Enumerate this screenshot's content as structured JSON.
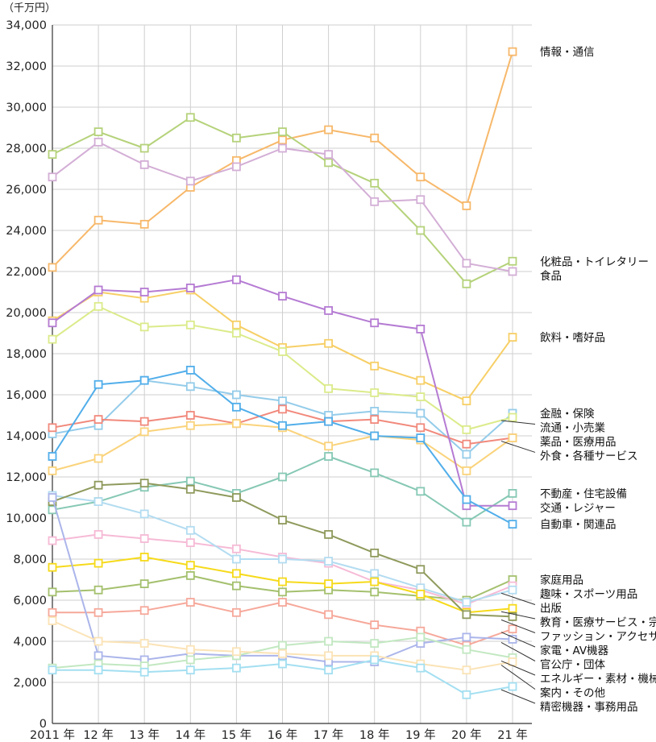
{
  "chart_data": {
    "type": "line",
    "y_unit": "（千万円）",
    "ylim": [
      0,
      34000
    ],
    "y_ticks": [
      0,
      2000,
      4000,
      6000,
      8000,
      10000,
      12000,
      14000,
      16000,
      18000,
      20000,
      22000,
      24000,
      26000,
      28000,
      30000,
      32000,
      34000
    ],
    "y_tick_labels": [
      "0",
      "2,000",
      "4,000",
      "6,000",
      "8,000",
      "10,000",
      "12,000",
      "14,000",
      "16,000",
      "18,000",
      "20,000",
      "22,000",
      "24,000",
      "26,000",
      "28,000",
      "30,000",
      "32,000",
      "34,000"
    ],
    "x_ticks": [
      "2011 年",
      "12 年",
      "13 年",
      "14 年",
      "15 年",
      "16 年",
      "17 年",
      "18 年",
      "19 年",
      "20 年",
      "21 年"
    ],
    "grid": true,
    "legend": "right, labels at line ends",
    "series": [
      {
        "name": "情報・通信",
        "color": "#f7b86a",
        "values": [
          22200,
          24500,
          24300,
          26100,
          27400,
          28400,
          28900,
          28500,
          26600,
          25200,
          32700
        ]
      },
      {
        "name": "化粧品・トイレタリー",
        "color": "#b5d27a",
        "values": [
          27700,
          28800,
          28000,
          29500,
          28500,
          28800,
          27300,
          26300,
          24000,
          21400,
          22500
        ]
      },
      {
        "name": "食品",
        "color": "#d3aed6",
        "values": [
          26600,
          28300,
          27200,
          26400,
          27100,
          28000,
          27700,
          25400,
          25500,
          22400,
          22000
        ]
      },
      {
        "name": "飲料・嗜好品",
        "color": "#f7cf66",
        "values": [
          19600,
          21000,
          20700,
          21100,
          19400,
          18300,
          18500,
          17400,
          16700,
          15700,
          18800
        ]
      },
      {
        "name": "金融・保険",
        "color": "#94ccea",
        "values": [
          14100,
          14500,
          16700,
          16400,
          16000,
          15700,
          15000,
          15200,
          15100,
          13100,
          15100
        ]
      },
      {
        "name": "流通・小売業",
        "color": "#dbeb8a",
        "values": [
          18700,
          20300,
          19300,
          19400,
          19000,
          18100,
          16300,
          16100,
          15900,
          14300,
          14900
        ]
      },
      {
        "name": "薬品・医療用品",
        "color": "#f1897c",
        "values": [
          14400,
          14800,
          14700,
          15000,
          14600,
          15300,
          14700,
          14800,
          14400,
          13600,
          13900
        ]
      },
      {
        "name": "外食・各種サービス",
        "color": "#fad37b",
        "values": [
          12300,
          12900,
          14200,
          14500,
          14600,
          14400,
          13500,
          14000,
          13800,
          12300,
          13900
        ]
      },
      {
        "name": "不動産・住宅設備",
        "color": "#86c8b4",
        "values": [
          10400,
          10800,
          11500,
          11800,
          11200,
          12000,
          13000,
          12200,
          11300,
          9800,
          11200
        ]
      },
      {
        "name": "交通・レジャー",
        "color": "#b57bd3",
        "values": [
          19500,
          21100,
          21000,
          21200,
          21600,
          20800,
          20100,
          19500,
          19200,
          10600,
          10600
        ]
      },
      {
        "name": "自動車・関連品",
        "color": "#51aeea",
        "values": [
          13000,
          16500,
          16700,
          17200,
          15400,
          14500,
          14700,
          14000,
          13900,
          10900,
          9700
        ]
      },
      {
        "name": "家庭用品",
        "color": "#a4c06d",
        "values": [
          6400,
          6500,
          6800,
          7200,
          6700,
          6400,
          6500,
          6400,
          6200,
          6000,
          7000
        ]
      },
      {
        "name": "趣味・スポーツ用品",
        "color": "#f6bad6",
        "values": [
          8900,
          9200,
          9000,
          8800,
          8500,
          8100,
          7800,
          6900,
          6500,
          5800,
          6700
        ]
      },
      {
        "name": "出版",
        "color": "#b3dcf1",
        "values": [
          11100,
          10800,
          10200,
          9400,
          8000,
          8000,
          7900,
          7300,
          6600,
          5900,
          6500
        ]
      },
      {
        "name": "教育・医療サービス・宗教",
        "color": "#f6da1a",
        "values": [
          7600,
          7800,
          8100,
          7700,
          7300,
          6900,
          6800,
          6900,
          6300,
          5400,
          5600
        ]
      },
      {
        "name": "ファッション・アクセサリー",
        "color": "#8e9a5c",
        "values": [
          10800,
          11600,
          11700,
          11400,
          11000,
          9900,
          9200,
          8300,
          7500,
          5300,
          5200
        ]
      },
      {
        "name": "家電・AV機器",
        "color": "#f6a89a",
        "values": [
          5400,
          5400,
          5500,
          5900,
          5400,
          5900,
          5300,
          4800,
          4500,
          3800,
          4600
        ]
      },
      {
        "name": "官公庁・団体",
        "color": "#abb5ea",
        "values": [
          11000,
          3300,
          3100,
          3400,
          3300,
          3300,
          3000,
          3000,
          3900,
          4200,
          4100
        ]
      },
      {
        "name": "エネルギー・素材・機械",
        "color": "#c2e8c1",
        "values": [
          2700,
          2900,
          2800,
          3100,
          3300,
          3800,
          4000,
          3900,
          4200,
          3600,
          3200
        ]
      },
      {
        "name": "案内・その他",
        "color": "#fbe3b6",
        "values": [
          5000,
          4000,
          3900,
          3600,
          3500,
          3400,
          3300,
          3300,
          2900,
          2600,
          3000
        ]
      },
      {
        "name": "精密機器・事務用品",
        "color": "#a3dff1",
        "values": [
          2600,
          2600,
          2500,
          2600,
          2700,
          2900,
          2600,
          3100,
          2700,
          1400,
          1800
        ]
      }
    ]
  }
}
